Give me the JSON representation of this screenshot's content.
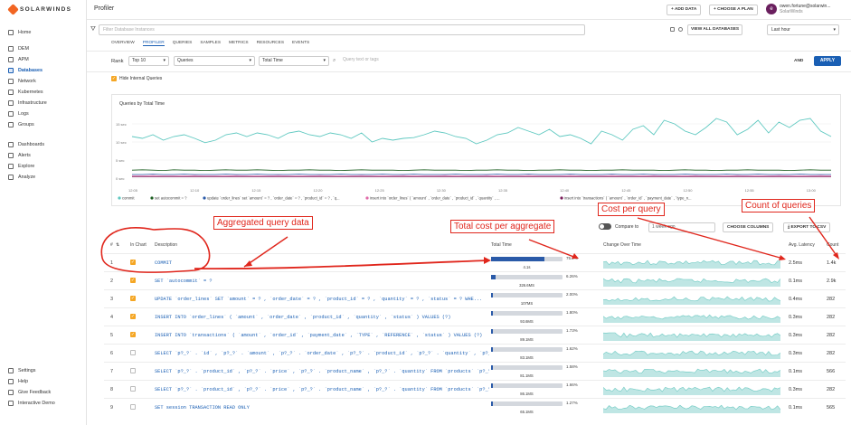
{
  "app": {
    "brand": "SOLARWINDS",
    "page_title": "Profiler"
  },
  "sidebar": {
    "items": [
      {
        "label": "Home",
        "icon": "home-icon"
      },
      {
        "label": "DEM",
        "icon": "dem-icon"
      },
      {
        "label": "APM",
        "icon": "apm-icon"
      },
      {
        "label": "Databases",
        "icon": "database-icon",
        "active": true
      },
      {
        "label": "Network",
        "icon": "network-icon"
      },
      {
        "label": "Kubernetes",
        "icon": "kubernetes-icon"
      },
      {
        "label": "Infrastructure",
        "icon": "infrastructure-icon"
      },
      {
        "label": "Logs",
        "icon": "logs-icon"
      },
      {
        "label": "Groups",
        "icon": "groups-icon"
      },
      {
        "label": "Dashboards",
        "icon": "dashboards-icon"
      },
      {
        "label": "Alerts",
        "icon": "alerts-icon"
      },
      {
        "label": "Explore",
        "icon": "explore-icon"
      },
      {
        "label": "Analyze",
        "icon": "analyze-icon"
      }
    ],
    "footer": [
      {
        "label": "Settings",
        "icon": "settings-icon"
      },
      {
        "label": "Help",
        "icon": "help-icon"
      },
      {
        "label": "Give Feedback",
        "icon": "feedback-icon"
      },
      {
        "label": "Interactive Demo",
        "icon": "demo-icon"
      }
    ]
  },
  "header": {
    "add_data": "+ ADD DATA",
    "choose_plan": "+ CHOOSE A PLAN",
    "avatar_initial": "e",
    "user_name": "owen.fortune@solarwin...",
    "user_org": "SolarWinds"
  },
  "filter": {
    "placeholder": "Filter Database Instances",
    "view_all": "VIEW ALL DATABASES",
    "time_range": "Last hour"
  },
  "tabs": [
    "OVERVIEW",
    "PROFILER",
    "QUERIES",
    "SAMPLES",
    "METRICS",
    "RESOURCES",
    "EVENTS"
  ],
  "active_tab": "PROFILER",
  "rank": {
    "label": "Rank",
    "top": "Top 10",
    "metric": "Queries",
    "sort": "Total Time",
    "query_placeholder": "Query text or tags",
    "and": "AND",
    "apply": "APPLY"
  },
  "hide_internal": "Hide Internal Queries",
  "chart_data": {
    "type": "line",
    "title": "Queries by Total Time",
    "y_ticks": [
      "15 sec",
      "10 sec",
      "5 sec",
      "0 sec"
    ],
    "ylim": [
      0,
      18
    ],
    "x_ticks": [
      "12:05",
      "12:10",
      "12:15",
      "12:20",
      "12:25",
      "12:30",
      "12:35",
      "12:40",
      "12:45",
      "12:50",
      "12:55",
      "13:00"
    ],
    "series": [
      {
        "name": "commit",
        "color": "#5ec8c0",
        "values": [
          11.5,
          11,
          12,
          10.5,
          11.5,
          12,
          11,
          9.8,
          10.5,
          12,
          12.5,
          11.5,
          12.5,
          12,
          11,
          12.5,
          13,
          12,
          11.5,
          12.5,
          12,
          11,
          12.5,
          10,
          11,
          10.5,
          11,
          11.2,
          12,
          13,
          12.5,
          11.5,
          11,
          9.5,
          10.5,
          12,
          12.5,
          14,
          13,
          12,
          13.5,
          11.5,
          12,
          11,
          9.5,
          13,
          12,
          10.5,
          13.5,
          14.5,
          12,
          16,
          15,
          13,
          12,
          14,
          16.5,
          15.5,
          12,
          13.5,
          16,
          12.5,
          15.5,
          14,
          16,
          16.5,
          13,
          11.5
        ]
      },
      {
        "name": "set autocommit = ?",
        "color": "#1b5e20",
        "values": [
          2.2,
          2.3,
          2.2,
          2.1,
          2.3,
          2.2,
          2.2,
          2.1,
          2.2,
          2.3,
          2.2,
          2.2,
          2.3,
          2.2,
          2.1,
          2.2,
          2.2,
          2.3,
          2.2,
          2.2,
          2.1,
          2.2,
          2.3,
          2.2,
          2.2,
          2.2,
          2.1,
          2.2,
          2.3,
          2.2,
          2.2,
          2.2,
          2.1,
          2.2,
          2.2,
          2.3,
          2.2,
          2.2,
          2.1,
          2.2,
          2.2,
          2.3,
          2.2,
          2.2,
          2.1,
          2.2,
          2.2,
          2.3,
          2.2,
          2.2,
          2.2,
          2.1,
          2.2,
          2.3,
          2.2,
          2.2,
          2.1,
          2.2,
          2.2,
          2.3,
          2.2,
          2.2,
          2.2,
          2.1,
          2.2,
          2.3,
          2.2,
          2.2
        ]
      },
      {
        "name": "update `order_lines` set `amount` = ? , `order_date` = ? , `product_id` = ? , `q...",
        "color": "#2a5aa8",
        "values": [
          1.0,
          1.0,
          1.1,
          1.0,
          1.0,
          1.1,
          1.0,
          1.0,
          1.0,
          1.1,
          1.0,
          1.0,
          1.1,
          1.0,
          1.0,
          1.0,
          1.1,
          1.0,
          1.0,
          1.0,
          1.1,
          1.0,
          1.0,
          1.0,
          1.1,
          1.0,
          1.0,
          1.1,
          1.0,
          1.0,
          1.0,
          1.1,
          1.0,
          1.0,
          1.0,
          1.1,
          1.0,
          1.0,
          1.1,
          1.0,
          1.0,
          1.0,
          1.1,
          1.0,
          1.0,
          1.0,
          1.1,
          1.0,
          1.0,
          1.1,
          1.0,
          1.0,
          1.0,
          1.1,
          1.0,
          1.0,
          1.0,
          1.1,
          1.0,
          1.0,
          1.1,
          1.0,
          1.0,
          1.0,
          1.1,
          1.0,
          1.0,
          1.0
        ]
      },
      {
        "name": "insert into `order_lines` ( `amount` , `order_date` , `product_id` , `quantity` , ...",
        "color": "#e06aa8",
        "values": [
          0.6,
          0.6,
          0.7,
          0.6,
          0.6,
          0.6,
          0.7,
          0.6,
          0.6,
          0.6,
          0.7,
          0.6,
          0.6,
          0.6,
          0.7,
          0.6,
          0.6,
          0.6,
          0.7,
          0.6,
          0.6,
          0.6,
          0.7,
          0.6,
          0.6,
          0.6,
          0.7,
          0.6,
          0.6,
          0.6,
          0.7,
          0.6,
          0.6,
          0.6,
          0.7,
          0.6,
          0.6,
          0.6,
          0.7,
          0.6,
          0.6,
          0.6,
          0.7,
          0.6,
          0.6,
          0.6,
          0.7,
          0.6,
          0.6,
          0.6,
          0.7,
          0.6,
          0.6,
          0.6,
          0.7,
          0.6,
          0.6,
          0.6,
          0.7,
          0.6,
          0.6,
          0.6,
          0.7,
          0.6,
          0.6,
          0.6,
          0.7,
          0.6
        ]
      },
      {
        "name": "insert into `transactions` ( `amount` , `order_id` , `payment_date` , `type_n...",
        "color": "#7b1e5a",
        "values": [
          0.4,
          0.4,
          0.4,
          0.4,
          0.4,
          0.4,
          0.4,
          0.4,
          0.4,
          0.4,
          0.4,
          0.4,
          0.4,
          0.4,
          0.4,
          0.4,
          0.4,
          0.4,
          0.4,
          0.4,
          0.4,
          0.4,
          0.4,
          0.4,
          0.4,
          0.4,
          0.4,
          0.4,
          0.4,
          0.4,
          0.4,
          0.4,
          0.4,
          0.4,
          0.4,
          0.4,
          0.4,
          0.4,
          0.4,
          0.4,
          0.4,
          0.4,
          0.4,
          0.4,
          0.4,
          0.4,
          0.4,
          0.4,
          0.4,
          0.4,
          0.4,
          0.4,
          0.4,
          0.4,
          0.4,
          0.4,
          0.4,
          0.4,
          0.4,
          0.4,
          0.4,
          0.4,
          0.4,
          0.4,
          0.4,
          0.4,
          0.4,
          0.4
        ]
      }
    ]
  },
  "table": {
    "compare_label": "Compare to",
    "compare_value": "1 week ago",
    "choose_columns": "CHOOSE COLUMNS",
    "export_csv": "EXPORT TO CSV",
    "headers": {
      "num": "#",
      "in_chart": "In Chart",
      "description": "Description",
      "total_time": "Total Time",
      "change": "Change Over Time",
      "latency": "Avg. Latency",
      "count": "Count"
    },
    "rows": [
      {
        "num": "1",
        "checked": true,
        "desc": "COMMIT",
        "pct": "75.2%",
        "pct_value": 0.752,
        "time": "4.1s",
        "latency": "2.5ms",
        "count": "1.4k"
      },
      {
        "num": "2",
        "checked": true,
        "desc": "SET `autocommit` = ?",
        "pct": "6.26%",
        "pct_value": 0.0626,
        "time": "326.6MS",
        "latency": "0.1ms",
        "count": "2.9k"
      },
      {
        "num": "3",
        "checked": true,
        "desc": "UPDATE `order_lines` SET `amount` = ? , `order_date` = ? , `product_id` = ? , `quantity` = ? , `status` = ? WHE...",
        "pct": "2.00%",
        "pct_value": 0.02,
        "time": "107MS",
        "latency": "0.4ms",
        "count": "282"
      },
      {
        "num": "4",
        "checked": true,
        "desc": "INSERT INTO `order_lines` ( `amount` , `order_date` , `product_id` , `quantity` , `status` ) VALUES (?)",
        "pct": "1.80%",
        "pct_value": 0.018,
        "time": "93.6MS",
        "latency": "0.3ms",
        "count": "282"
      },
      {
        "num": "5",
        "checked": true,
        "desc": "INSERT INTO `transactions` ( `amount` , `order_id` , `payment_date` , `TYPE` , `REFERENCE` , `status` ) VALUES (?)",
        "pct": "1.73%",
        "pct_value": 0.0173,
        "time": "89.1MS",
        "latency": "0.3ms",
        "count": "282"
      },
      {
        "num": "6",
        "checked": false,
        "desc": "SELECT `p?_?` . `id` , `p?_?` . `amount` , `p?_?` . `order_date` , `p?_?` . `product_id` , `p?_?` . `quantity` , `p?_?` ...",
        "pct": "1.62%",
        "pct_value": 0.0162,
        "time": "83.1MS",
        "latency": "0.3ms",
        "count": "282"
      },
      {
        "num": "7",
        "checked": false,
        "desc": "SELECT `p?_?` . `product_id` , `p?_?` . `price` , `p?_?` . `product_name` , `p?_?` . `quantity` FROM `products` `p?_?` ...",
        "pct": "1.58%",
        "pct_value": 0.0158,
        "time": "81.1MS",
        "latency": "0.1ms",
        "count": "566"
      },
      {
        "num": "8",
        "checked": false,
        "desc": "SELECT `p?_?` . `product_id` , `p?_?` . `price` , `p?_?` . `product_name` , `p?_?` . `quantity` FROM `products` `p?_?` ...",
        "pct": "1.66%",
        "pct_value": 0.0166,
        "time": "86.1MS",
        "latency": "0.3ms",
        "count": "282"
      },
      {
        "num": "9",
        "checked": false,
        "desc": "SET session TRANSACTION READ ONLY",
        "pct": "1.27%",
        "pct_value": 0.0127,
        "time": "65.1MS",
        "latency": "0.1ms",
        "count": "565"
      }
    ]
  },
  "annotations": {
    "aggregated": "Aggregated query data",
    "total_cost": "Total cost per aggregate",
    "cost_per_query": "Cost per query",
    "count_of_queries": "Count of queries"
  },
  "colors": {
    "accent": "#1a5fb4",
    "annotation": "#e0261c",
    "brand": "#f26522"
  }
}
